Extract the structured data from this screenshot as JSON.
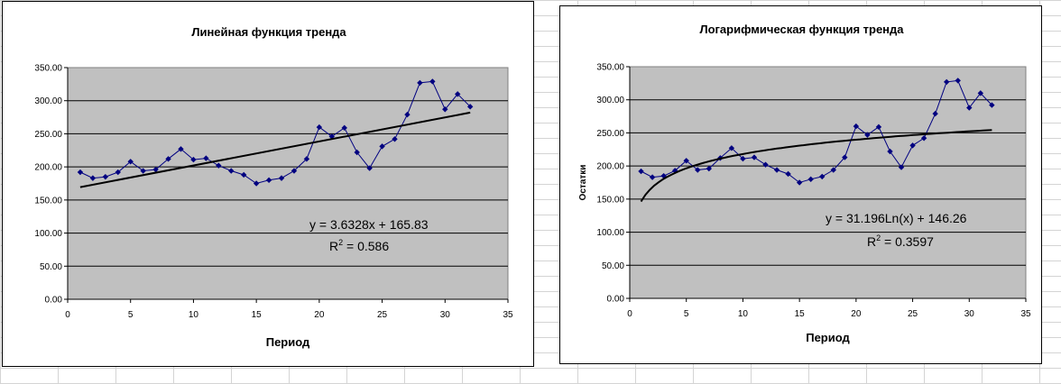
{
  "chart_data": [
    {
      "type": "scatter",
      "title": "Линейная функция тренда",
      "xlabel": "Период",
      "ylabel": "",
      "xlim": [
        0,
        35
      ],
      "ylim": [
        0,
        350
      ],
      "x_ticks": [
        "0",
        "5",
        "10",
        "15",
        "20",
        "25",
        "30",
        "35"
      ],
      "y_ticks": [
        "0.00",
        "50.00",
        "100.00",
        "150.00",
        "200.00",
        "250.00",
        "300.00",
        "350.00"
      ],
      "grid": "horizontal",
      "plot_background": "#c0c0c0",
      "series": [
        {
          "x": [
            1,
            2,
            3,
            4,
            5,
            6,
            7,
            8,
            9,
            10,
            11,
            12,
            13,
            14,
            15,
            16,
            17,
            18,
            19,
            20,
            21,
            22,
            23,
            24,
            25,
            26,
            27,
            28,
            29,
            30,
            31,
            32
          ],
          "y": [
            192,
            183,
            185,
            192,
            208,
            194,
            196,
            212,
            227,
            211,
            213,
            202,
            194,
            188,
            175,
            180,
            183,
            194,
            212,
            260,
            246,
            259,
            222,
            198,
            231,
            242,
            279,
            327,
            329,
            287,
            310,
            291
          ],
          "color": "#000080"
        }
      ],
      "trendline": {
        "kind": "linear",
        "slope": 3.6328,
        "intercept": 165.83,
        "x_range": [
          1,
          32
        ],
        "equation": "y = 3.6328x + 165.83",
        "r2_label": "R",
        "r2_sup": "2",
        "r2_value": " = 0.586"
      }
    },
    {
      "type": "scatter",
      "title": "Логарифмическая функция тренда",
      "xlabel": "Период",
      "ylabel": "Остатки",
      "xlim": [
        0,
        35
      ],
      "ylim": [
        0,
        350
      ],
      "x_ticks": [
        "0",
        "5",
        "10",
        "15",
        "20",
        "25",
        "30",
        "35"
      ],
      "y_ticks": [
        "0.00",
        "50.00",
        "100.00",
        "150.00",
        "200.00",
        "250.00",
        "300.00",
        "350.00"
      ],
      "grid": "horizontal",
      "plot_background": "#c0c0c0",
      "series": [
        {
          "x": [
            1,
            2,
            3,
            4,
            5,
            6,
            7,
            8,
            9,
            10,
            11,
            12,
            13,
            14,
            15,
            16,
            17,
            18,
            19,
            20,
            21,
            22,
            23,
            24,
            25,
            26,
            27,
            28,
            29,
            30,
            31,
            32
          ],
          "y": [
            192,
            183,
            185,
            193,
            208,
            194,
            196,
            212,
            227,
            211,
            213,
            202,
            194,
            188,
            175,
            180,
            184,
            194,
            213,
            260,
            247,
            259,
            222,
            198,
            231,
            242,
            279,
            327,
            329,
            288,
            310,
            292
          ],
          "color": "#000080"
        }
      ],
      "trendline": {
        "kind": "logarithmic",
        "coef": 31.196,
        "intercept": 146.26,
        "x_range": [
          1,
          32
        ],
        "equation": "y = 31.196Ln(x) + 146.26",
        "r2_label": "R",
        "r2_sup": "2",
        "r2_value": " = 0.3597"
      }
    }
  ]
}
